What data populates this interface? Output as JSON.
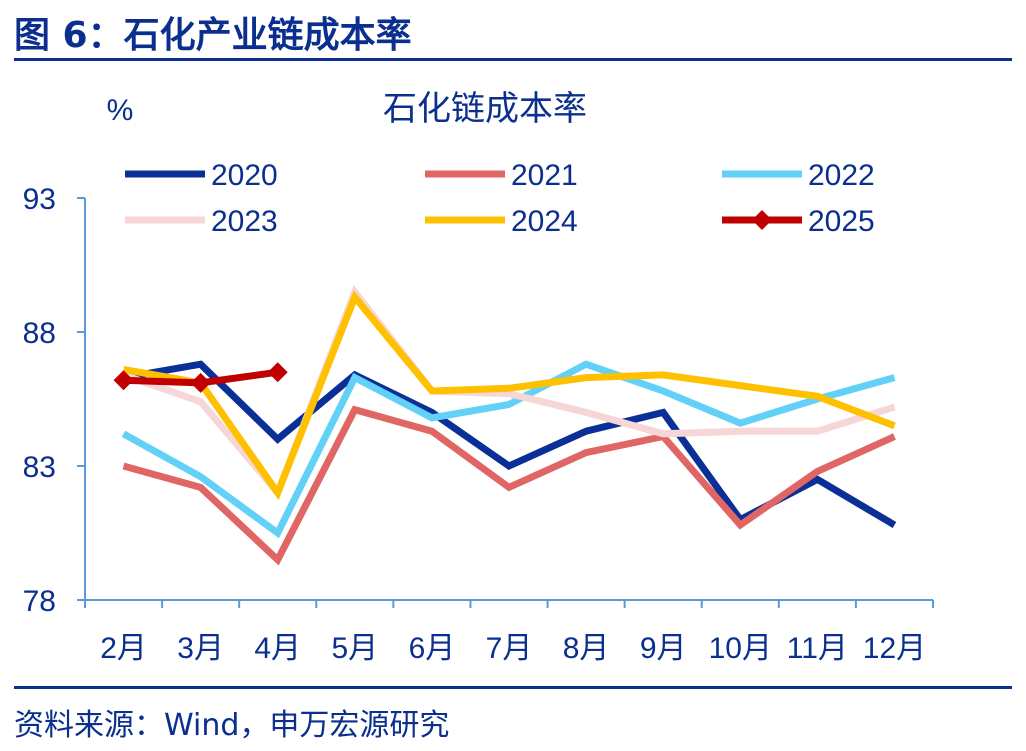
{
  "figure": {
    "title": "图 6：石化产业链成本率",
    "source": "资料来源：Wind，申万宏源研究"
  },
  "colors": {
    "accent": "#0b2f8f",
    "axis": "#5b9bd5",
    "text": "#0b2f8f"
  },
  "chart_data": {
    "type": "line",
    "title": "石化链成本率",
    "ylabel": "%",
    "xlabel": "",
    "ylim": [
      78,
      93
    ],
    "yticks": [
      78,
      83,
      88,
      93
    ],
    "categories": [
      "2月",
      "3月",
      "4月",
      "5月",
      "6月",
      "7月",
      "8月",
      "9月",
      "10月",
      "11月",
      "12月"
    ],
    "legend_position": "top",
    "grid": false,
    "series": [
      {
        "name": "2020",
        "color": "#0a2f96",
        "values": [
          86.3,
          86.8,
          84.0,
          86.4,
          85.0,
          83.0,
          84.3,
          85.0,
          81.0,
          82.5,
          80.8
        ]
      },
      {
        "name": "2021",
        "color": "#e06666",
        "values": [
          83.0,
          82.2,
          79.5,
          85.1,
          84.3,
          82.2,
          83.5,
          84.1,
          80.8,
          82.8,
          84.1
        ]
      },
      {
        "name": "2022",
        "color": "#62d0f7",
        "values": [
          84.2,
          82.6,
          80.5,
          86.3,
          84.8,
          85.3,
          86.8,
          85.8,
          84.6,
          85.5,
          86.3
        ]
      },
      {
        "name": "2023",
        "color": "#f6d6d6",
        "values": [
          86.4,
          85.4,
          82.0,
          89.5,
          85.8,
          85.7,
          85.0,
          84.2,
          84.3,
          84.3,
          85.2
        ]
      },
      {
        "name": "2024",
        "color": "#ffc000",
        "values": [
          86.6,
          86.1,
          82.0,
          89.3,
          85.8,
          85.9,
          86.3,
          86.4,
          86.0,
          85.6,
          84.5
        ]
      },
      {
        "name": "2025",
        "color": "#c00000",
        "marker": "diamond",
        "values": [
          86.2,
          86.1,
          86.5,
          null,
          null,
          null,
          null,
          null,
          null,
          null,
          null
        ]
      }
    ]
  }
}
